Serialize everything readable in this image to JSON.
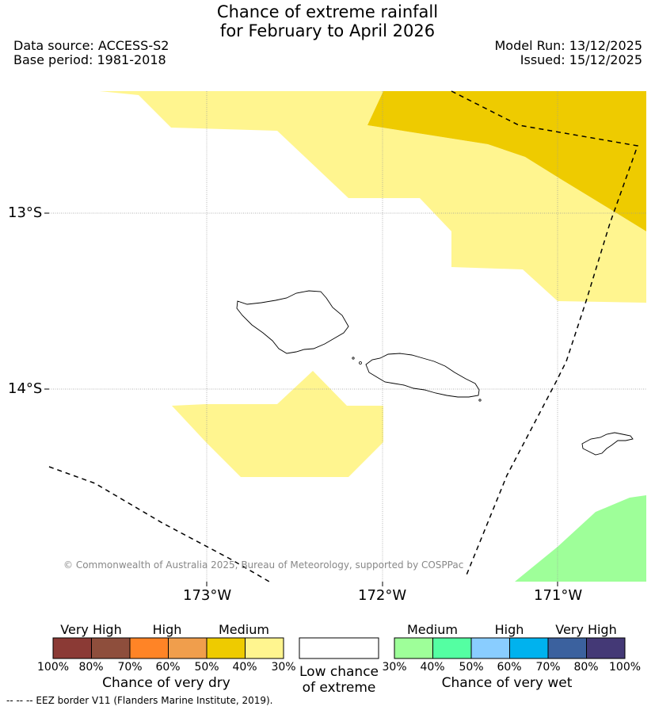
{
  "title": {
    "line1": "Chance of extreme rainfall",
    "line2": "for February to April 2026"
  },
  "meta": {
    "data_source": "Data source: ACCESS-S2",
    "base_period": "Base period: 1981-2018",
    "model_run": "Model Run: 13/12/2025",
    "issued": "Issued: 15/12/2025"
  },
  "map": {
    "lat_labels": [
      "13°S",
      "14°S"
    ],
    "lon_labels": [
      "173°W",
      "172°W",
      "171°W"
    ],
    "copyright": "© Commonwealth of Australia 2025, Bureau of Meteorology, supported by COSPPac",
    "colors": {
      "medium_dry": "#FFF58F",
      "medium_dry_high": "#EECB00",
      "medium_wet": "#9EFF99"
    }
  },
  "legend": {
    "dry": {
      "categories": [
        "Very High",
        "High",
        "Medium"
      ],
      "ticks": [
        "100%",
        "80%",
        "70%",
        "60%",
        "50%",
        "40%",
        "30%"
      ],
      "title": "Chance of very dry",
      "colors": [
        "#8B3A35",
        "#8E4E3C",
        "#FF8426",
        "#F09E4C",
        "#EECB00",
        "#FFF58F"
      ]
    },
    "neutral": {
      "line1": "Low chance",
      "line2": "of extreme",
      "color": "#FFFFFF"
    },
    "wet": {
      "categories": [
        "Medium",
        "High",
        "Very High"
      ],
      "ticks": [
        "30%",
        "40%",
        "50%",
        "60%",
        "70%",
        "80%",
        "100%"
      ],
      "title": "Chance of very wet",
      "colors": [
        "#9EFF99",
        "#54FFA2",
        "#89CDFF",
        "#00B2EE",
        "#3B619E",
        "#443976"
      ]
    }
  },
  "footer": {
    "eez": "-- -- -- EEZ border V11 (Flanders Marine Institute, 2019)."
  }
}
